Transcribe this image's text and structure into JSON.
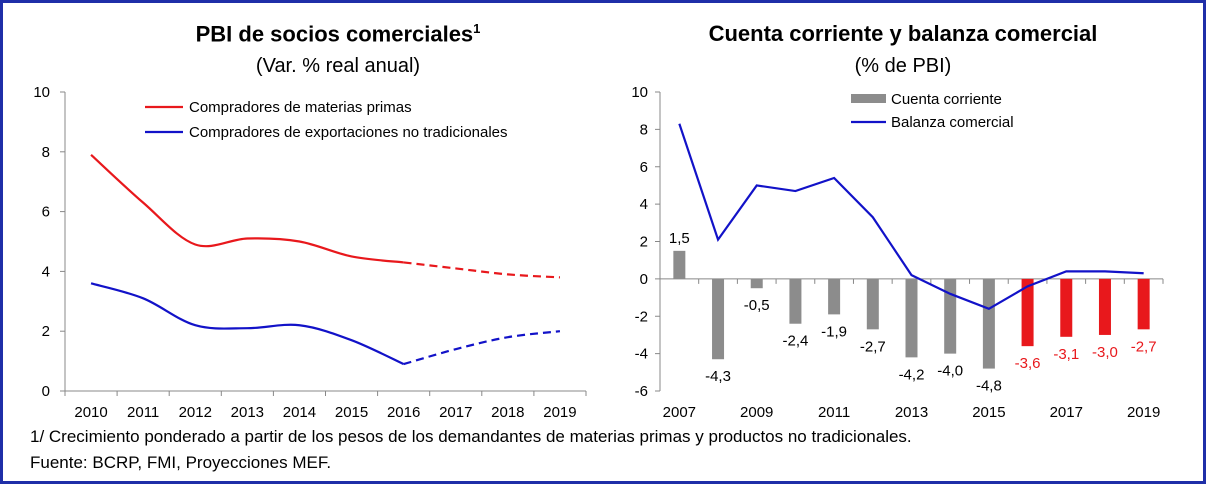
{
  "footnote": "1/ Crecimiento ponderado a partir de los pesos de los demandantes de materias primas y productos no tradicionales.",
  "source": "Fuente: BCRP, FMI, Proyecciones MEF.",
  "chart_data": [
    {
      "type": "line",
      "title": "PBI de socios comerciales",
      "title_superscript": "1",
      "subtitle": "(Var. % real anual)",
      "x": [
        "2010",
        "2011",
        "2012",
        "2013",
        "2014",
        "2015",
        "2016",
        "2017",
        "2018",
        "2019"
      ],
      "ylim": [
        0,
        10
      ],
      "yticks": [
        "0",
        "2",
        "4",
        "6",
        "8",
        "10"
      ],
      "projection_start": "2016",
      "legend_placement": "top",
      "series": [
        {
          "name": "Compradores de materias primas",
          "color": "#e8181c",
          "values": [
            7.9,
            6.3,
            4.9,
            5.1,
            5.0,
            4.5,
            4.3,
            4.1,
            3.9,
            3.8
          ]
        },
        {
          "name": "Compradores de exportaciones no tradicionales",
          "color": "#1212c8",
          "values": [
            3.6,
            3.1,
            2.2,
            2.1,
            2.2,
            1.7,
            0.9,
            1.4,
            1.8,
            2.0
          ]
        }
      ]
    },
    {
      "type": "bar",
      "title": "Cuenta corriente y balanza comercial",
      "subtitle": "(% de PBI)",
      "x": [
        "2007",
        "2008",
        "2009",
        "2010",
        "2011",
        "2012",
        "2013",
        "2014",
        "2015",
        "2016",
        "2017",
        "2018",
        "2019"
      ],
      "xtick_labels": [
        "2007",
        "",
        "2009",
        "",
        "2011",
        "",
        "2013",
        "",
        "2015",
        "",
        "2017",
        "",
        "2019"
      ],
      "ylim": [
        -6,
        10
      ],
      "yticks": [
        "-6",
        "-4",
        "-2",
        "0",
        "2",
        "4",
        "6",
        "8",
        "10"
      ],
      "legend_placement": "top",
      "series": [
        {
          "name": "Cuenta corriente",
          "kind": "bar",
          "color": "#8c8c8c",
          "projection_color": "#e8181c",
          "projection_start": "2016",
          "values": [
            1.5,
            -4.3,
            -0.5,
            -2.4,
            -1.9,
            -2.7,
            -4.2,
            -4.0,
            -4.8,
            -3.6,
            -3.1,
            -3.0,
            -2.7
          ],
          "labels": [
            "1,5",
            "-4,3",
            "-0,5",
            "-2,4",
            "-1,9",
            "-2,7",
            "-4,2",
            "-4,0",
            "-4,8",
            "-3,6",
            "-3,1",
            "-3,0",
            "-2,7"
          ]
        },
        {
          "name": "Balanza comercial",
          "kind": "line",
          "color": "#1212c8",
          "values": [
            8.3,
            2.1,
            5.0,
            4.7,
            5.4,
            3.3,
            0.2,
            -0.8,
            -1.6,
            -0.4,
            0.4,
            0.4,
            0.3
          ]
        }
      ]
    }
  ]
}
